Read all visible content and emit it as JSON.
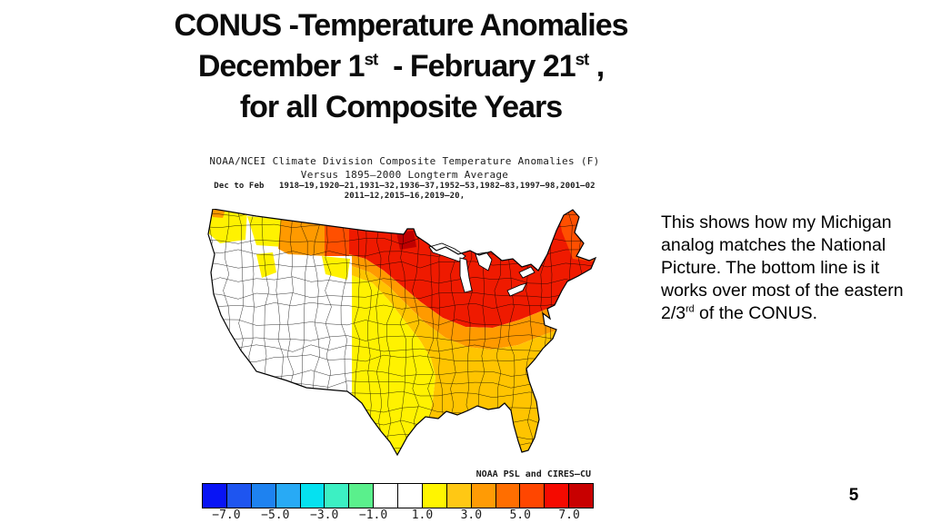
{
  "slide": {
    "title": {
      "line1": "CONUS -Temperature Anomalies",
      "line2_pre": "December 1",
      "line2_sup1": "st",
      "line2_mid": "  - February 21",
      "line2_sup2": "st",
      "line2_post": " ,",
      "line3": "for all Composite Years"
    },
    "note": {
      "text1": "This shows how my Michigan analog matches the National Picture.  The bottom line is it works over most of the eastern 2/3",
      "sup": "rd",
      "text2": " of the CONUS."
    },
    "page_number": "5"
  },
  "figure": {
    "header_line1": "NOAA/NCEI Climate Division Composite Temperature Anomalies (F)",
    "header_line2": "Versus 1895–2000 Longterm Average",
    "header_line3": "Dec to Feb   1918–19,1920–21,1931–32,1936–37,1952–53,1982–83,1997–98,2001–02",
    "header_line4": "2011–12,2015–16,2019–20,",
    "credit": "NOAA PSL and CIRES–CU",
    "colorbar": {
      "colors": [
        "#0814f5",
        "#1e55f0",
        "#1e82f0",
        "#28aaf5",
        "#05e1f0",
        "#3cf0c3",
        "#5af08c",
        "#ffffff",
        "#ffffff",
        "#fff500",
        "#ffc814",
        "#ff9b05",
        "#ff6e00",
        "#ff4600",
        "#f50a00",
        "#c80000"
      ],
      "tick_labels": [
        "−7.0",
        "−5.0",
        "−3.0",
        "−1.0",
        "1.0",
        "3.0",
        "5.0",
        "7.0"
      ],
      "units_per_cell": 1.0,
      "range": [
        -8,
        8
      ]
    },
    "map_colors": {
      "white": "#ffffff",
      "yellow": "#fff200",
      "gold": "#ffc400",
      "orange": "#ff9a00",
      "red_orange": "#ff4f00",
      "red": "#ef1a00",
      "dark_red": "#bf0000"
    }
  }
}
